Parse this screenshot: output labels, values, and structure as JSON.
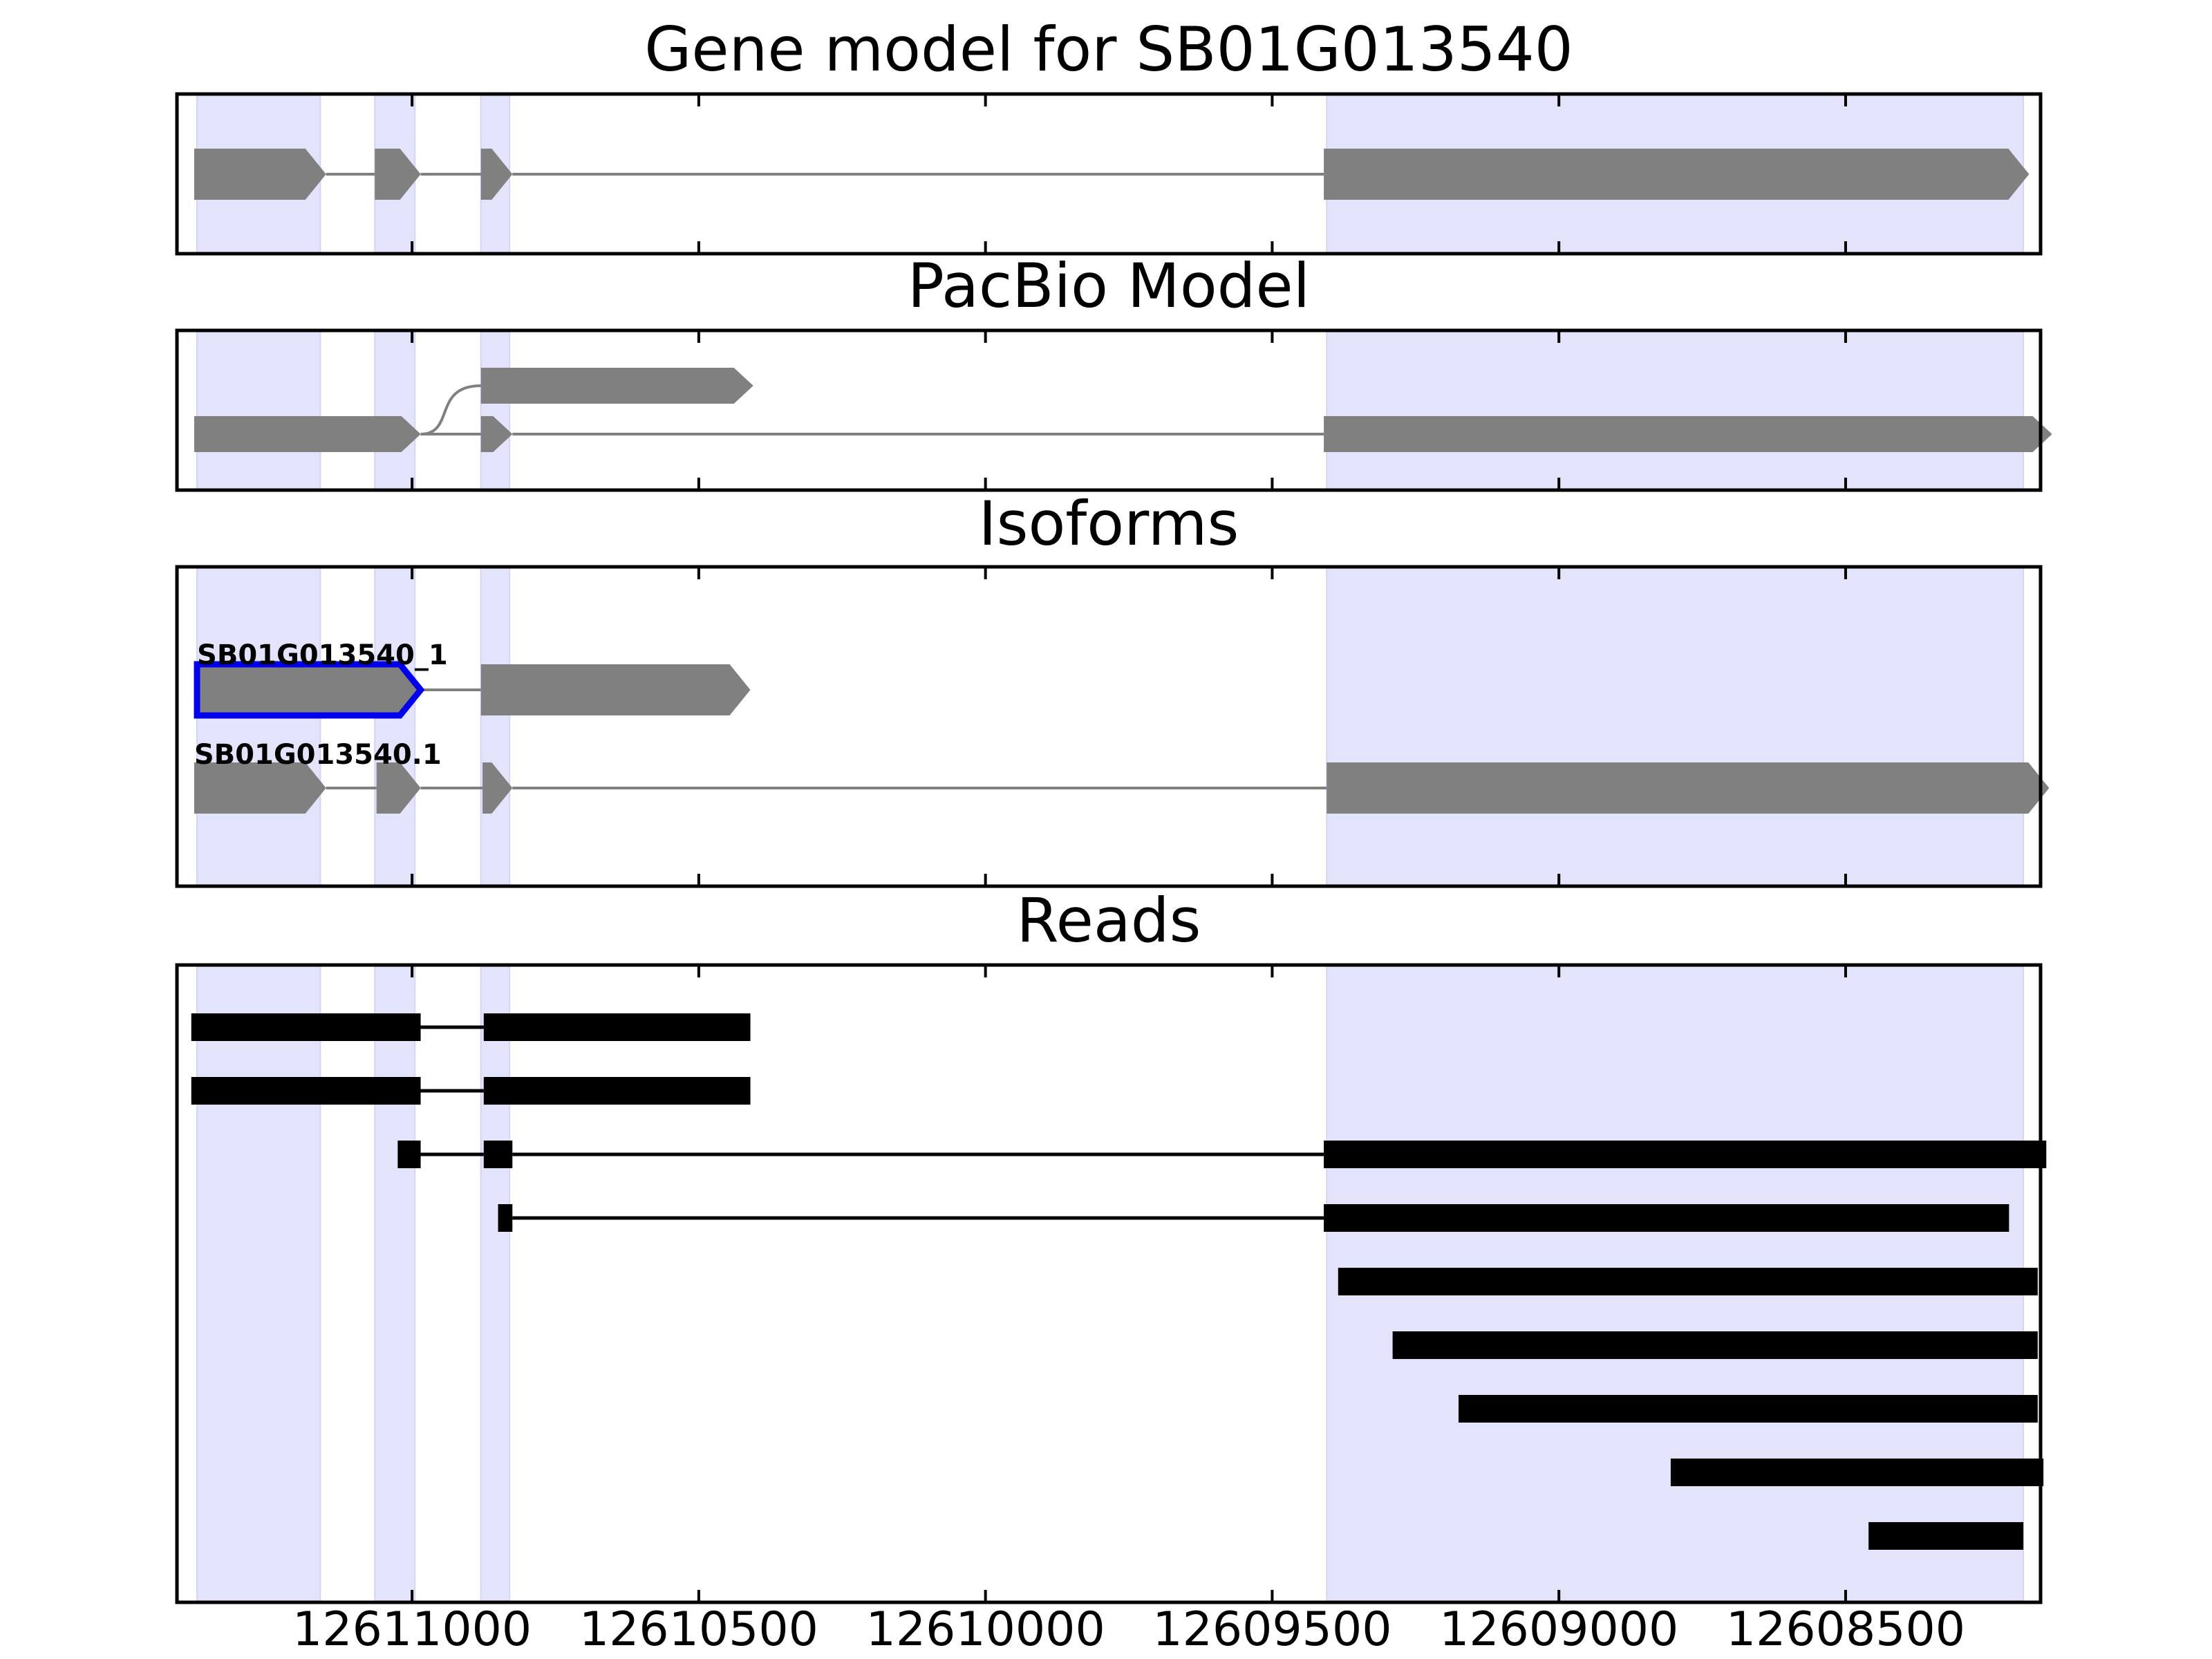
{
  "chart_data": {
    "type": "gene-track",
    "x_axis": {
      "reversed": true,
      "xlim": [
        12611410,
        12608160
      ],
      "ticks": [
        12611000,
        12610500,
        12610000,
        12609500,
        12609000,
        12608500
      ],
      "tick_labels": [
        "12611000",
        "12610500",
        "12610000",
        "12609500",
        "12609000",
        "12608500"
      ]
    },
    "colors": {
      "exon_fill": "#808080",
      "intron_line": "#808080",
      "highlight_region": "#e3e3fb",
      "selected_outline": "#0000ee",
      "read_fill": "#000000",
      "axis": "#000000"
    },
    "highlight_regions": [
      [
        12611375,
        12611160
      ],
      [
        12611065,
        12610995
      ],
      [
        12610880,
        12610830
      ],
      [
        12609405,
        12608190
      ]
    ],
    "panels": [
      {
        "key": "gene_model",
        "title": "Gene model for SB01G013540",
        "tracks": [
          {
            "label": "",
            "outlined": false,
            "exons": [
              [
                12611380,
                12611150
              ],
              [
                12611065,
                12610985
              ],
              [
                12610880,
                12610825
              ],
              [
                12609410,
                12608180
              ]
            ]
          }
        ]
      },
      {
        "key": "pacbio_model",
        "title": "PacBio Model",
        "tracks": [
          {
            "label": "",
            "outlined": false,
            "exons": [
              [
                12610880,
                12610405
              ]
            ],
            "branch_from": 12610985
          },
          {
            "label": "",
            "outlined": false,
            "exons": [
              [
                12611380,
                12610985
              ],
              [
                12610880,
                12610825
              ],
              [
                12609410,
                12608140
              ]
            ]
          }
        ]
      },
      {
        "key": "isoforms",
        "title": "Isoforms",
        "tracks": [
          {
            "label": "SB01G013540_1",
            "outlined": true,
            "exons": [
              [
                12611375,
                12610985
              ],
              [
                12610880,
                12610410
              ]
            ]
          },
          {
            "label": "SB01G013540.1",
            "outlined": false,
            "exons": [
              [
                12611380,
                12611150
              ],
              [
                12611062,
                12610985
              ],
              [
                12610877,
                12610825
              ],
              [
                12609405,
                12608145
              ]
            ]
          }
        ]
      },
      {
        "key": "reads",
        "title": "Reads",
        "reads": [
          [
            [
              12611385,
              12610985
            ],
            [
              12610875,
              12610410
            ]
          ],
          [
            [
              12611385,
              12610985
            ],
            [
              12610875,
              12610410
            ]
          ],
          [
            [
              12611025,
              12610985
            ],
            [
              12610875,
              12610825
            ],
            [
              12609410,
              12608150
            ]
          ],
          [
            [
              12610850,
              12610825
            ],
            [
              12609410,
              12608215
            ]
          ],
          [
            [
              12609385,
              12608165
            ]
          ],
          [
            [
              12609290,
              12608165
            ]
          ],
          [
            [
              12609175,
              12608165
            ]
          ],
          [
            [
              12608805,
              12608155
            ]
          ],
          [
            [
              12608460,
              12608190
            ]
          ]
        ]
      }
    ]
  }
}
